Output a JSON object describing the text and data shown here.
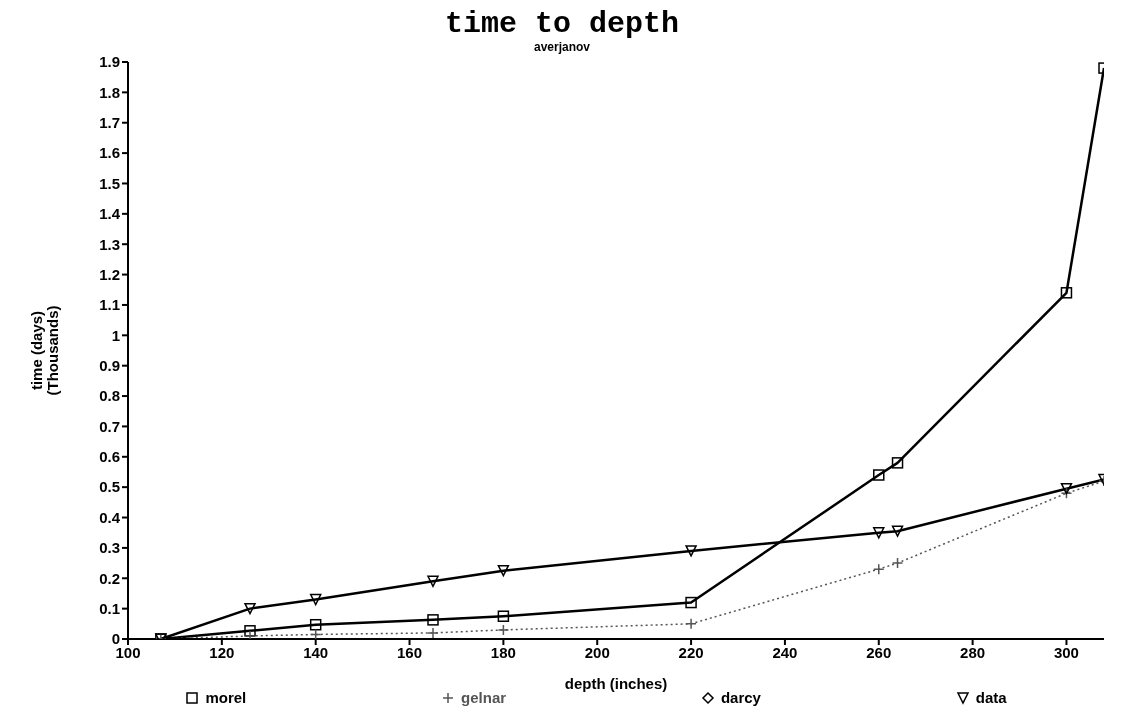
{
  "chart_data": {
    "type": "line",
    "title": "time to depth",
    "subtitle": "averjanov",
    "xlabel": "depth (inches)",
    "ylabel": "time (days)\n(Thousands)",
    "x": [
      107,
      126,
      140,
      165,
      180,
      220,
      260,
      264,
      300,
      308
    ],
    "series": [
      {
        "name": "morel",
        "color": "#000000",
        "marker": "square",
        "line_style": "solid",
        "values": [
          0,
          0.027,
          0.047,
          0.063,
          0.075,
          0.12,
          0.54,
          0.58,
          1.14,
          1.88
        ]
      },
      {
        "name": "gelnar",
        "color": "#555555",
        "marker": "cross",
        "line_style": "dotted",
        "values": [
          0,
          0.01,
          0.015,
          0.02,
          0.03,
          0.05,
          0.23,
          0.25,
          0.48,
          0.52
        ]
      },
      {
        "name": "darcy",
        "color": "#000000",
        "marker": "diamond",
        "line_style": "solid",
        "values": [
          null,
          null,
          null,
          null,
          null,
          null,
          null,
          null,
          null,
          null
        ]
      },
      {
        "name": "data",
        "color": "#000000",
        "marker": "triangle",
        "line_style": "solid",
        "values": [
          0,
          0.1,
          0.13,
          0.19,
          0.225,
          0.29,
          0.35,
          0.355,
          0.495,
          0.525
        ]
      }
    ],
    "xlim": [
      100,
      308
    ],
    "xticks": [
      100,
      120,
      140,
      160,
      180,
      200,
      220,
      240,
      260,
      280,
      300
    ],
    "ylim": [
      0,
      1.9
    ],
    "yticks": [
      0,
      0.1,
      0.2,
      0.3,
      0.4,
      0.5,
      0.6,
      0.7,
      0.8,
      0.9,
      1,
      1.1,
      1.2,
      1.3,
      1.4,
      1.5,
      1.6,
      1.7,
      1.8,
      1.9
    ],
    "grid": false,
    "legend": "bottom"
  }
}
